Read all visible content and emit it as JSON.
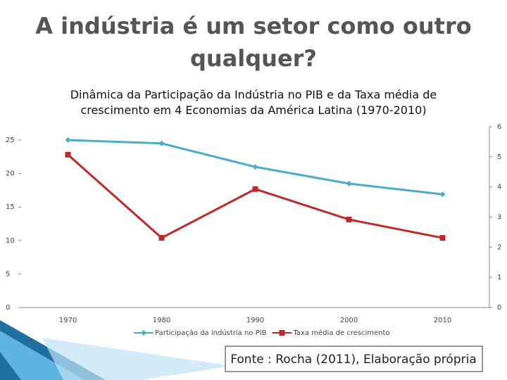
{
  "title": "A indústria é um setor como outro qualquer?",
  "source": "Fonte : Rocha (2011), Elaboração própria",
  "chart_data": {
    "type": "line",
    "title": "Dinâmica da Participação da Indústria no PIB e da Taxa média de crescimento em 4 Economias da América Latina (1970-2010)",
    "categories": [
      "1970",
      "1980",
      "1990",
      "2000",
      "2010"
    ],
    "series": [
      {
        "name": "Participação da indústria no PIB",
        "color": "#4bacc6",
        "marker": "diamond",
        "values": [
          25.0,
          24.5,
          21.0,
          18.5,
          16.9
        ]
      },
      {
        "name": "Taxa média de crescimento",
        "color": "#c0292b",
        "marker": "square",
        "axis": "y2",
        "values": [
          5.07,
          2.31,
          3.93,
          2.92,
          2.31
        ]
      }
    ],
    "ylim": [
      0,
      27
    ],
    "yticks": [
      0,
      5,
      10,
      15,
      20,
      25
    ],
    "y2lim": [
      0,
      6
    ],
    "y2ticks": [
      0,
      1,
      2,
      3,
      4,
      5,
      6
    ],
    "legend": "bottom"
  }
}
